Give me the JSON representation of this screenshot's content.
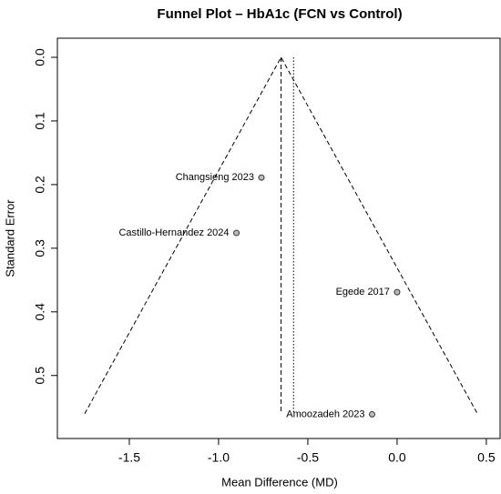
{
  "chart_data": {
    "type": "scatter",
    "title": "Funnel Plot – HbA1c (FCN vs Control)",
    "x_label": "Mean Difference (MD)",
    "y_label": "Standard Error",
    "series": [
      {
        "color": "#bbbbbb",
        "x": [
          -0.76,
          -0.9,
          0.0,
          -0.14
        ],
        "values": [
          0.189,
          0.276,
          0.369,
          0.561
        ],
        "point_labels": [
          "Changsieng 2023",
          "Castillo-Hernandez 2024",
          "Egede 2017",
          "Amoozadeh 2023"
        ]
      }
    ],
    "funnel": {
      "x": [
        -1.75,
        -0.65,
        0.45
      ],
      "y": [
        0.56,
        0,
        0.56
      ]
    },
    "pooled_estimate": -0.65,
    "reference_line": -0.58,
    "xlim": [
      -1.903,
      0.577
    ],
    "ylim": [
      0.599,
      -0.03
    ],
    "xticks": [
      -1.5,
      {
        "value": -1,
        "label": "-1.0"
      },
      -0.5,
      {
        "value": 0,
        "label": "0.0"
      },
      0.5
    ],
    "yticks": [
      {
        "value": 0,
        "label": "0.0"
      },
      0.1,
      0.2,
      0.3,
      0.4,
      0.5
    ]
  }
}
